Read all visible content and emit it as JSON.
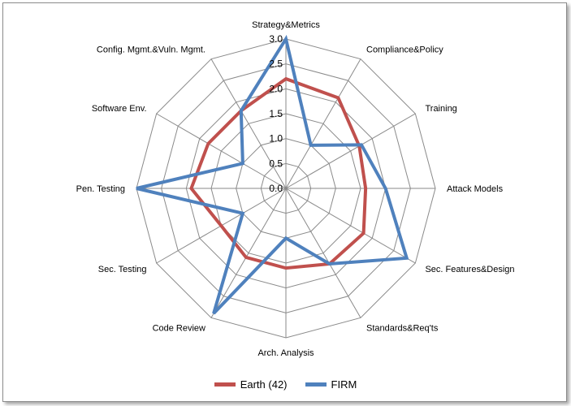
{
  "chart_data": {
    "type": "radar",
    "axes": [
      "Strategy&Metrics",
      "Compliance&Policy",
      "Training",
      "Attack Models",
      "Sec. Features&Design",
      "Standards&Req'ts",
      "Arch. Analysis",
      "Code Review",
      "Sec. Testing",
      "Pen. Testing",
      "Software Env.",
      "Config. Mgmt.&Vuln. Mgmt."
    ],
    "rlim": [
      0,
      3
    ],
    "ticks": [
      "0.0",
      "0.5",
      "1.0",
      "1.5",
      "2.0",
      "2.5",
      "3.0"
    ],
    "tick_values": [
      0,
      0.5,
      1,
      1.5,
      2,
      2.5,
      3
    ],
    "grid": true,
    "legend_position": "bottom",
    "series": [
      {
        "name": "Earth (42)",
        "color": "#c0504d",
        "values": [
          2.2,
          2.1,
          1.7,
          1.6,
          1.8,
          1.75,
          1.6,
          1.6,
          1.5,
          1.9,
          1.8,
          1.8
        ]
      },
      {
        "name": "FIRM",
        "color": "#4f81bd",
        "values": [
          3.0,
          1.0,
          1.75,
          2.0,
          2.8,
          1.75,
          1.0,
          2.9,
          1.0,
          3.0,
          1.0,
          1.8
        ]
      }
    ]
  }
}
